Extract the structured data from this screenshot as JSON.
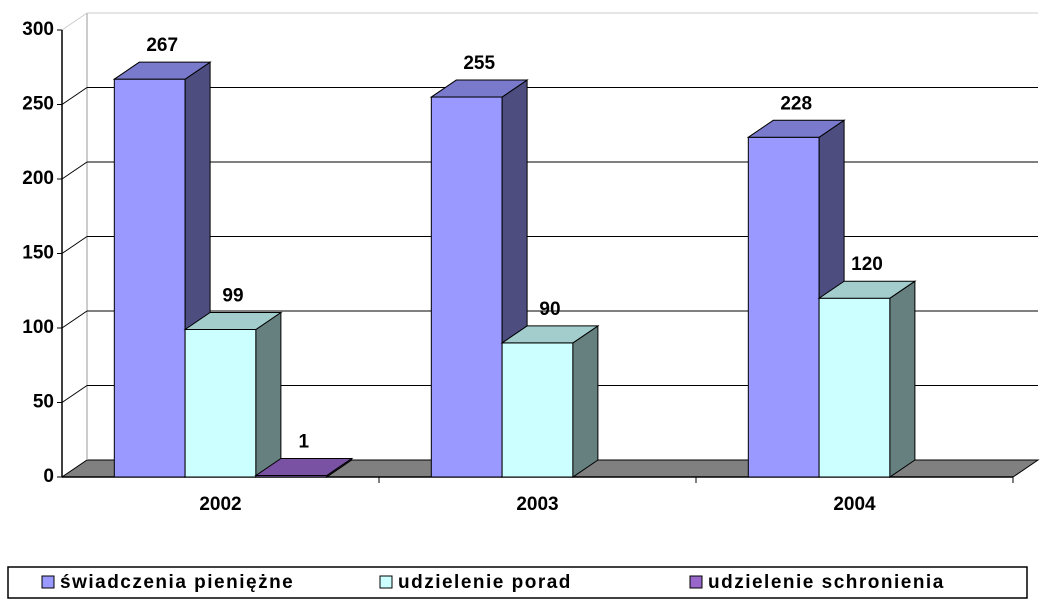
{
  "chart_data": {
    "type": "bar3d",
    "categories": [
      "2002",
      "2003",
      "2004"
    ],
    "series": [
      {
        "name": "świadczenia pieniężne",
        "color": "#9999ff",
        "values": [
          267,
          255,
          228
        ]
      },
      {
        "name": "udzielenie porad",
        "color": "#ccffff",
        "values": [
          99,
          90,
          120
        ]
      },
      {
        "name": "udzielenie schronienia",
        "color": "#9966cc",
        "values": [
          1,
          null,
          null
        ]
      }
    ],
    "ylim": [
      0,
      300
    ],
    "yticks": [
      0,
      50,
      100,
      150,
      200,
      250,
      300
    ],
    "grid": true,
    "legend": "bottom"
  }
}
